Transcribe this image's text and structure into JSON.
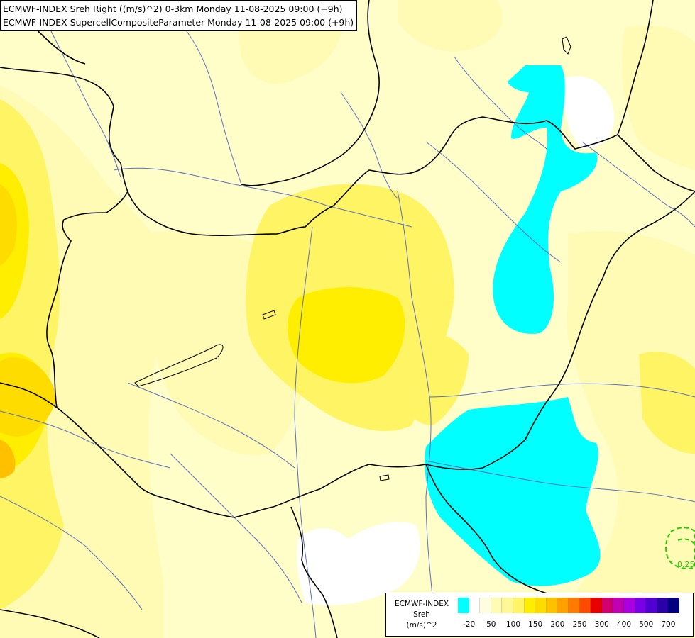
{
  "title": {
    "line1": "ECMWF-INDEX Sreh Right ((m/s)^2) 0-3km Monday 11-08-2025 09:00 (+9h)",
    "line2": "ECMWF-INDEX SupercellCompositeParameter Monday 11-08-2025 09:00 (+9h)"
  },
  "legend": {
    "source": "ECMWF-INDEX",
    "variable": "Sreh",
    "unit": "(m/s)^2",
    "swatch_colors": [
      "#00ffff",
      "#ffffff",
      "#fffde0",
      "#fffbb4",
      "#fff896",
      "#fff464",
      "#ffee00",
      "#ffdc00",
      "#ffc000",
      "#ffa000",
      "#ff7a00",
      "#ff4a00",
      "#e80000",
      "#d0006e",
      "#c000b0",
      "#a800e0",
      "#7a00e8",
      "#5000d0",
      "#2a00a8",
      "#000080"
    ],
    "ticks": [
      "-20",
      "50",
      "100",
      "150",
      "200",
      "250",
      "300",
      "400",
      "500",
      "700"
    ]
  },
  "contour_label": "0.25",
  "colors": {
    "background": "#fffdc8",
    "light_yellow": "#fffbb4",
    "mid_yellow": "#fff464",
    "strong_yellow": "#ffee00",
    "orange": "#ffdc00",
    "dark_orange": "#ffc000",
    "cyan": "#00ffff",
    "white": "#ffffff",
    "river": "#5a6fc0",
    "border": "#000000",
    "contour": "#22cc00"
  }
}
